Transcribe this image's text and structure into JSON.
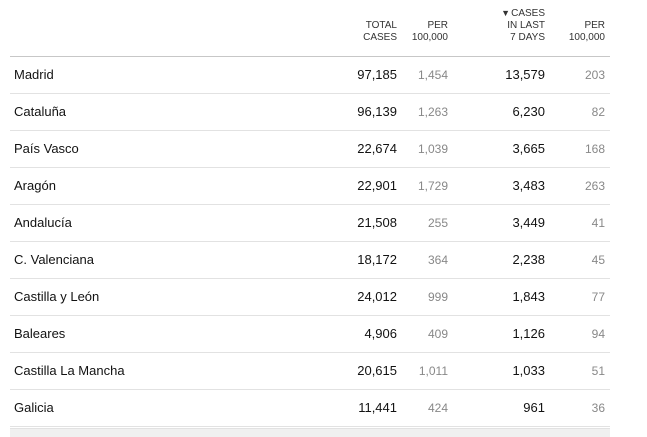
{
  "headers": {
    "total_line1": "TOTAL",
    "total_line2": "CASES",
    "per1_line1": "PER",
    "per1_line2": "100,000",
    "sort_arrow": "▼",
    "cases7_line1": "CASES",
    "cases7_line2": "IN LAST",
    "cases7_line3": "7 DAYS",
    "per2_line1": "PER",
    "per2_line2": "100,000"
  },
  "rows": [
    {
      "region": "Madrid",
      "total": "97,185",
      "total_per": "1,454",
      "week": "13,579",
      "week_per": "203"
    },
    {
      "region": "Cataluña",
      "total": "96,139",
      "total_per": "1,263",
      "week": "6,230",
      "week_per": "82"
    },
    {
      "region": "País Vasco",
      "total": "22,674",
      "total_per": "1,039",
      "week": "3,665",
      "week_per": "168"
    },
    {
      "region": "Aragón",
      "total": "22,901",
      "total_per": "1,729",
      "week": "3,483",
      "week_per": "263"
    },
    {
      "region": "Andalucía",
      "total": "21,508",
      "total_per": "255",
      "week": "3,449",
      "week_per": "41"
    },
    {
      "region": "C. Valenciana",
      "total": "18,172",
      "total_per": "364",
      "week": "2,238",
      "week_per": "45"
    },
    {
      "region": "Castilla y León",
      "total": "24,012",
      "total_per": "999",
      "week": "1,843",
      "week_per": "77"
    },
    {
      "region": "Baleares",
      "total": "4,906",
      "total_per": "409",
      "week": "1,126",
      "week_per": "94"
    },
    {
      "region": "Castilla La Mancha",
      "total": "20,615",
      "total_per": "1,011",
      "week": "1,033",
      "week_per": "51"
    },
    {
      "region": "Galicia",
      "total": "11,441",
      "total_per": "424",
      "week": "961",
      "week_per": "36"
    }
  ],
  "chart_data": {
    "type": "table",
    "columns": [
      "TOTAL CASES",
      "PER 100,000",
      "CASES IN LAST 7 DAYS",
      "PER 100,000"
    ],
    "sorted_by": "CASES IN LAST 7 DAYS",
    "categories": [
      "Madrid",
      "Cataluña",
      "País Vasco",
      "Aragón",
      "Andalucía",
      "C. Valenciana",
      "Castilla y León",
      "Baleares",
      "Castilla La Mancha",
      "Galicia"
    ],
    "series": [
      {
        "values": [
          97185,
          96139,
          22674,
          22901,
          21508,
          18172,
          24012,
          4906,
          20615,
          11441
        ]
      },
      {
        "values": [
          1454,
          1263,
          1039,
          1729,
          255,
          364,
          999,
          409,
          1011,
          424
        ]
      },
      {
        "values": [
          13579,
          6230,
          3665,
          3483,
          3449,
          2238,
          1843,
          1126,
          1033,
          961
        ]
      },
      {
        "values": [
          203,
          82,
          168,
          263,
          41,
          45,
          77,
          94,
          51,
          36
        ]
      }
    ]
  }
}
